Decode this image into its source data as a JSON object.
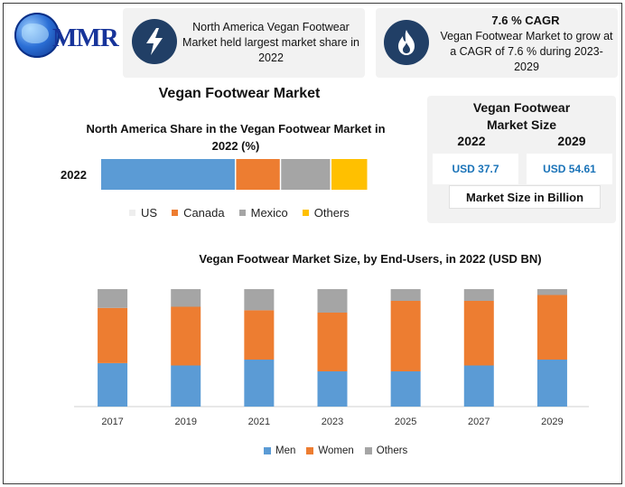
{
  "logo": {
    "text": "MMR"
  },
  "card_left": {
    "icon": "lightning-icon",
    "text": "North America Vegan Footwear Market held largest market share in 2022"
  },
  "card_right": {
    "icon": "flame-icon",
    "title": "7.6 % CAGR",
    "text": "Vegan Footwear Market to grow at a CAGR of 7.6 % during 2023-2029"
  },
  "main_title": "Vegan Footwear Market",
  "market_size": {
    "title": "Vegan Footwear Market Size",
    "year_a": "2022",
    "year_b": "2029",
    "value_a": "USD 37.7",
    "value_b": "USD 54.61",
    "unit": "Market Size in Billion"
  },
  "colors": {
    "us": "#5b9bd5",
    "canada": "#ed7d31",
    "mexico": "#a5a5a5",
    "others": "#ffc000",
    "icon_bg": "#213f66"
  },
  "chart_data": [
    {
      "type": "bar",
      "orientation": "horizontal",
      "stacked": true,
      "title": "North America Share in the Vegan Footwear Market in 2022 (%)",
      "categories": [
        "2022"
      ],
      "series": [
        {
          "name": "US",
          "values": [
            51
          ]
        },
        {
          "name": "Canada",
          "values": [
            17
          ]
        },
        {
          "name": "Mexico",
          "values": [
            19
          ]
        },
        {
          "name": "Others",
          "values": [
            14
          ]
        }
      ],
      "legend": "bottom"
    },
    {
      "type": "bar",
      "stacked": true,
      "title": "Vegan Footwear Market Size, by End-Users, in 2022 (USD BN)",
      "categories": [
        "2017",
        "2019",
        "2021",
        "2023",
        "2025",
        "2027",
        "2029"
      ],
      "series": [
        {
          "name": "Men",
          "values": [
            37,
            35,
            40,
            30,
            30,
            35,
            40
          ]
        },
        {
          "name": "Women",
          "values": [
            47,
            50,
            42,
            50,
            60,
            55,
            55
          ]
        },
        {
          "name": "Others",
          "values": [
            16,
            15,
            18,
            20,
            10,
            10,
            5
          ]
        }
      ],
      "legend": "bottom"
    }
  ]
}
